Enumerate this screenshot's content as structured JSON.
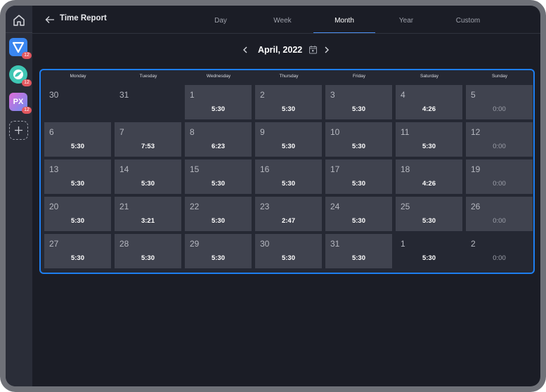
{
  "sidebar": {
    "apps": [
      {
        "name": "app-one",
        "badge": "12",
        "color": "#3a86f0"
      },
      {
        "name": "app-two",
        "badge": "12",
        "color": "#3fc6b4"
      },
      {
        "name": "app-three",
        "badge": "12",
        "color": "#9a6cf0"
      }
    ],
    "app3_text": "PX"
  },
  "header": {
    "title": "Time Report",
    "tabs": [
      "Day",
      "Week",
      "Month",
      "Year",
      "Custom"
    ],
    "active_tab": "Month"
  },
  "nav": {
    "month_label": "April, 2022"
  },
  "calendar": {
    "weekdays": [
      "Monday",
      "Tuesday",
      "Wednesday",
      "Thursday",
      "Friday",
      "Saturday",
      "Sunday"
    ],
    "weeks": [
      [
        {
          "day": "30",
          "hours": "",
          "in_month": false
        },
        {
          "day": "31",
          "hours": "",
          "in_month": false
        },
        {
          "day": "1",
          "hours": "5:30",
          "in_month": true
        },
        {
          "day": "2",
          "hours": "5:30",
          "in_month": true
        },
        {
          "day": "3",
          "hours": "5:30",
          "in_month": true
        },
        {
          "day": "4",
          "hours": "4:26",
          "in_month": true
        },
        {
          "day": "5",
          "hours": "0:00",
          "in_month": true
        }
      ],
      [
        {
          "day": "6",
          "hours": "5:30",
          "in_month": true
        },
        {
          "day": "7",
          "hours": "7:53",
          "in_month": true
        },
        {
          "day": "8",
          "hours": "6:23",
          "in_month": true
        },
        {
          "day": "9",
          "hours": "5:30",
          "in_month": true
        },
        {
          "day": "10",
          "hours": "5:30",
          "in_month": true
        },
        {
          "day": "11",
          "hours": "5:30",
          "in_month": true
        },
        {
          "day": "12",
          "hours": "0:00",
          "in_month": true
        }
      ],
      [
        {
          "day": "13",
          "hours": "5:30",
          "in_month": true
        },
        {
          "day": "14",
          "hours": "5:30",
          "in_month": true
        },
        {
          "day": "15",
          "hours": "5:30",
          "in_month": true
        },
        {
          "day": "16",
          "hours": "5:30",
          "in_month": true
        },
        {
          "day": "17",
          "hours": "5:30",
          "in_month": true
        },
        {
          "day": "18",
          "hours": "4:26",
          "in_month": true
        },
        {
          "day": "19",
          "hours": "0:00",
          "in_month": true
        }
      ],
      [
        {
          "day": "20",
          "hours": "5:30",
          "in_month": true
        },
        {
          "day": "21",
          "hours": "3:21",
          "in_month": true
        },
        {
          "day": "22",
          "hours": "5:30",
          "in_month": true
        },
        {
          "day": "23",
          "hours": "2:47",
          "in_month": true
        },
        {
          "day": "24",
          "hours": "5:30",
          "in_month": true
        },
        {
          "day": "25",
          "hours": "5:30",
          "in_month": true
        },
        {
          "day": "26",
          "hours": "0:00",
          "in_month": true
        }
      ],
      [
        {
          "day": "27",
          "hours": "5:30",
          "in_month": true
        },
        {
          "day": "28",
          "hours": "5:30",
          "in_month": true
        },
        {
          "day": "29",
          "hours": "5:30",
          "in_month": true
        },
        {
          "day": "30",
          "hours": "5:30",
          "in_month": true
        },
        {
          "day": "31",
          "hours": "5:30",
          "in_month": true
        },
        {
          "day": "1",
          "hours": "5:30",
          "in_month": false
        },
        {
          "day": "2",
          "hours": "0:00",
          "in_month": false
        }
      ]
    ]
  },
  "colors": {
    "accent": "#1e7ef0",
    "tab_active": "#4b8ff2",
    "badge": "#e2575f"
  }
}
